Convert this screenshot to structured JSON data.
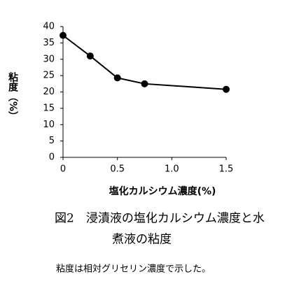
{
  "chart_data": {
    "type": "line",
    "x": [
      0,
      0.25,
      0.5,
      0.75,
      1.5
    ],
    "series": [
      {
        "color": "#000000",
        "values": [
          37.3,
          31.0,
          24.3,
          22.5,
          20.8
        ]
      }
    ],
    "xlim": [
      0,
      1.5
    ],
    "xticks": [
      0,
      0.5,
      {
        "value": 1.0,
        "label": "1.0"
      },
      1.5
    ],
    "ylim": [
      0,
      40
    ],
    "yticks": [
      0,
      5,
      10,
      15,
      20,
      25,
      30,
      35,
      40
    ],
    "xlabel": "塩化カルシウム濃度(%)",
    "ylabel": "粘度（%）",
    "caption": [
      "図2　浸漬液の塩化カルシウム濃度と水",
      "煮液の粘度"
    ],
    "note": "粘度は相対グリセリン濃度で示した。"
  }
}
